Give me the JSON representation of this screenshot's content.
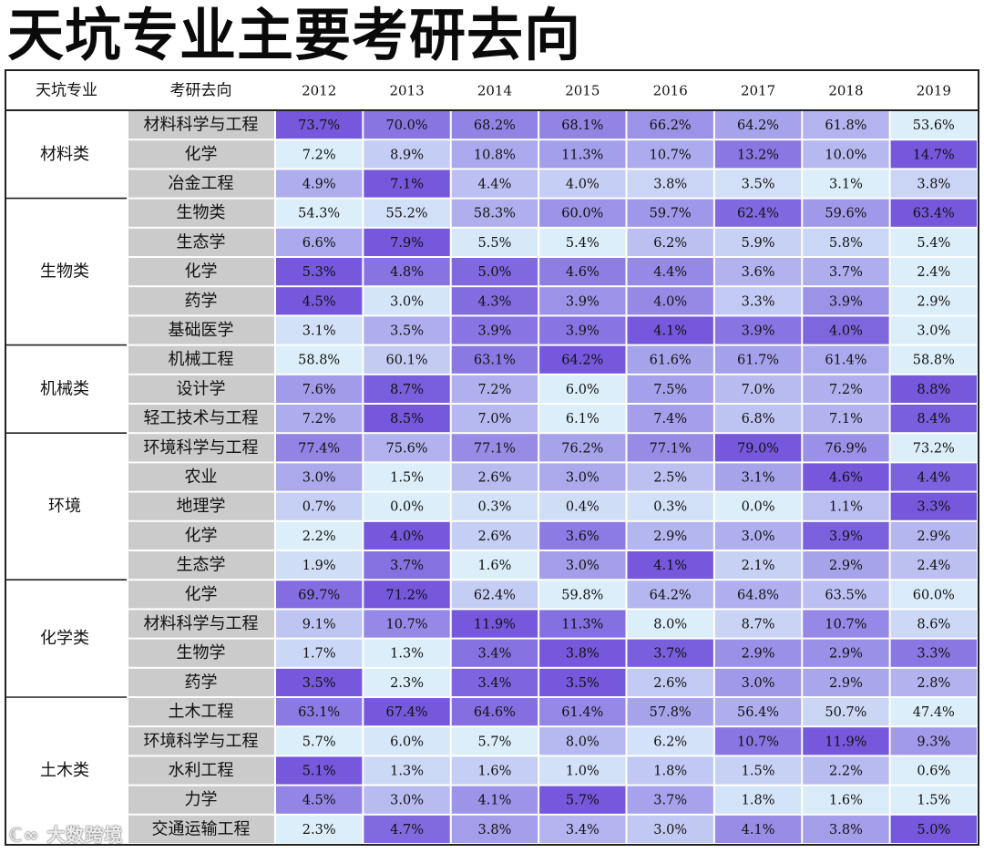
{
  "title": "天坑专业主要考研去向",
  "watermark": "大数跨境",
  "colors": {
    "low": "#dbeefa",
    "mid": "#a9a6ec",
    "high": "#7558dc",
    "dir_bg": "#cbcbcb",
    "border": "#ffffff",
    "line": "#222222"
  },
  "chart_data": {
    "type": "heatmap",
    "title": "天坑专业主要考研去向",
    "header": {
      "major_label": "天坑专业",
      "direction_label": "考研去向"
    },
    "years": [
      "2012",
      "2013",
      "2014",
      "2015",
      "2016",
      "2017",
      "2018",
      "2019"
    ],
    "groups": [
      {
        "name": "材料类",
        "rows": [
          {
            "direction": "材料科学与工程",
            "values": [
              "73.7%",
              "70.0%",
              "68.2%",
              "68.1%",
              "66.2%",
              "64.2%",
              "61.8%",
              "53.6%"
            ]
          },
          {
            "direction": "化学",
            "values": [
              "7.2%",
              "8.9%",
              "10.8%",
              "11.3%",
              "10.7%",
              "13.2%",
              "10.0%",
              "14.7%"
            ]
          },
          {
            "direction": "冶金工程",
            "values": [
              "4.9%",
              "7.1%",
              "4.4%",
              "4.0%",
              "3.8%",
              "3.5%",
              "3.1%",
              "3.8%"
            ]
          }
        ]
      },
      {
        "name": "生物类",
        "rows": [
          {
            "direction": "生物类",
            "values": [
              "54.3%",
              "55.2%",
              "58.3%",
              "60.0%",
              "59.7%",
              "62.4%",
              "59.6%",
              "63.4%"
            ]
          },
          {
            "direction": "生态学",
            "values": [
              "6.6%",
              "7.9%",
              "5.5%",
              "5.4%",
              "6.2%",
              "5.9%",
              "5.8%",
              "5.4%"
            ]
          },
          {
            "direction": "化学",
            "values": [
              "5.3%",
              "4.8%",
              "5.0%",
              "4.6%",
              "4.4%",
              "3.6%",
              "3.7%",
              "2.4%"
            ]
          },
          {
            "direction": "药学",
            "values": [
              "4.5%",
              "3.0%",
              "4.3%",
              "3.9%",
              "4.0%",
              "3.3%",
              "3.9%",
              "2.9%"
            ]
          },
          {
            "direction": "基础医学",
            "values": [
              "3.1%",
              "3.5%",
              "3.9%",
              "3.9%",
              "4.1%",
              "3.9%",
              "4.0%",
              "3.0%"
            ]
          }
        ]
      },
      {
        "name": "机械类",
        "rows": [
          {
            "direction": "机械工程",
            "values": [
              "58.8%",
              "60.1%",
              "63.1%",
              "64.2%",
              "61.6%",
              "61.7%",
              "61.4%",
              "58.8%"
            ]
          },
          {
            "direction": "设计学",
            "values": [
              "7.6%",
              "8.7%",
              "7.2%",
              "6.0%",
              "7.5%",
              "7.0%",
              "7.2%",
              "8.8%"
            ]
          },
          {
            "direction": "轻工技术与工程",
            "values": [
              "7.2%",
              "8.5%",
              "7.0%",
              "6.1%",
              "7.4%",
              "6.8%",
              "7.1%",
              "8.4%"
            ]
          }
        ]
      },
      {
        "name": "环境",
        "rows": [
          {
            "direction": "环境科学与工程",
            "values": [
              "77.4%",
              "75.6%",
              "77.1%",
              "76.2%",
              "77.1%",
              "79.0%",
              "76.9%",
              "73.2%"
            ]
          },
          {
            "direction": "农业",
            "values": [
              "3.0%",
              "1.5%",
              "2.6%",
              "3.0%",
              "2.5%",
              "3.1%",
              "4.6%",
              "4.4%"
            ]
          },
          {
            "direction": "地理学",
            "values": [
              "0.7%",
              "0.0%",
              "0.3%",
              "0.4%",
              "0.3%",
              "0.0%",
              "1.1%",
              "3.3%"
            ]
          },
          {
            "direction": "化学",
            "values": [
              "2.2%",
              "4.0%",
              "2.6%",
              "3.6%",
              "2.9%",
              "3.0%",
              "3.9%",
              "2.9%"
            ]
          },
          {
            "direction": "生态学",
            "values": [
              "1.9%",
              "3.7%",
              "1.6%",
              "3.0%",
              "4.1%",
              "2.1%",
              "2.9%",
              "2.4%"
            ]
          }
        ]
      },
      {
        "name": "化学类",
        "rows": [
          {
            "direction": "化学",
            "values": [
              "69.7%",
              "71.2%",
              "62.4%",
              "59.8%",
              "64.2%",
              "64.8%",
              "63.5%",
              "60.0%"
            ]
          },
          {
            "direction": "材料科学与工程",
            "values": [
              "9.1%",
              "10.7%",
              "11.9%",
              "11.3%",
              "8.0%",
              "8.7%",
              "10.7%",
              "8.6%"
            ]
          },
          {
            "direction": "生物学",
            "values": [
              "1.7%",
              "1.3%",
              "3.4%",
              "3.8%",
              "3.7%",
              "2.9%",
              "2.9%",
              "3.3%"
            ]
          },
          {
            "direction": "药学",
            "values": [
              "3.5%",
              "2.3%",
              "3.4%",
              "3.5%",
              "2.6%",
              "3.0%",
              "2.9%",
              "2.8%"
            ]
          }
        ]
      },
      {
        "name": "土木类",
        "rows": [
          {
            "direction": "土木工程",
            "values": [
              "63.1%",
              "67.4%",
              "64.6%",
              "61.4%",
              "57.8%",
              "56.4%",
              "50.7%",
              "47.4%"
            ]
          },
          {
            "direction": "环境科学与工程",
            "values": [
              "5.7%",
              "6.0%",
              "5.7%",
              "8.0%",
              "6.2%",
              "10.7%",
              "11.9%",
              "9.3%"
            ]
          },
          {
            "direction": "水利工程",
            "values": [
              "5.1%",
              "1.3%",
              "1.6%",
              "1.0%",
              "1.8%",
              "1.5%",
              "2.2%",
              "0.6%"
            ]
          },
          {
            "direction": "力学",
            "values": [
              "4.5%",
              "3.0%",
              "4.1%",
              "5.7%",
              "3.7%",
              "1.8%",
              "1.6%",
              "1.5%"
            ]
          },
          {
            "direction": "交通运输工程",
            "values": [
              "2.3%",
              "4.7%",
              "3.8%",
              "3.4%",
              "3.0%",
              "4.1%",
              "3.8%",
              "5.0%"
            ]
          }
        ]
      }
    ]
  }
}
